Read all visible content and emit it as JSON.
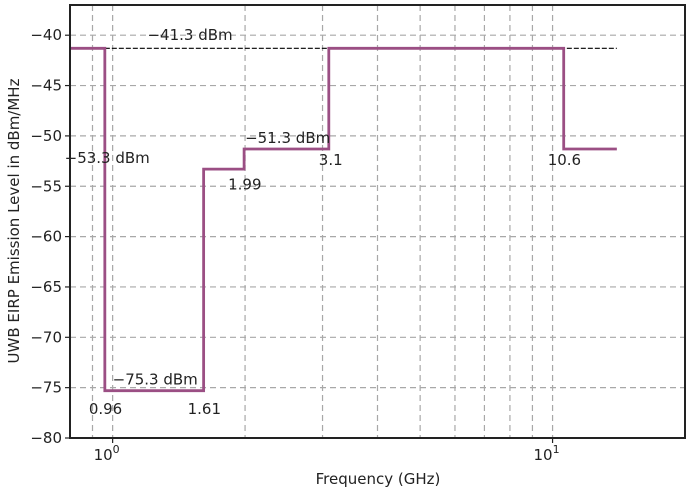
{
  "chart_data": {
    "type": "line",
    "xscale": "log",
    "xlabel": "Frequency (GHz)",
    "ylabel": "UWB EIRP Emission Level in dBm/MHz",
    "xlim": [
      0.8,
      20
    ],
    "ylim": [
      -80,
      -37
    ],
    "grid": true,
    "x_ticks": [
      {
        "value": 1,
        "base": "10",
        "exp": "0"
      },
      {
        "value": 10,
        "base": "10",
        "exp": "1"
      }
    ],
    "y_ticks": [
      -40,
      -45,
      -50,
      -55,
      -60,
      -65,
      -70,
      -75,
      -80
    ],
    "y_tick_labels": [
      "−40",
      "−45",
      "−50",
      "−55",
      "−60",
      "−65",
      "−70",
      "−75",
      "−80"
    ],
    "series": [
      {
        "color": "#9b4f84",
        "step_x": [
          0.8,
          0.96,
          0.96,
          1.61,
          1.61,
          1.99,
          1.99,
          3.1,
          3.1,
          10.6,
          10.6,
          14
        ],
        "step_y": [
          -41.3,
          -41.3,
          -75.3,
          -75.3,
          -53.3,
          -53.3,
          -51.3,
          -51.3,
          -41.3,
          -41.3,
          -51.3,
          -51.3
        ]
      }
    ],
    "reference_line": {
      "y": -41.3,
      "x_range": [
        0.96,
        14
      ],
      "color": "#000000"
    },
    "annotations": [
      {
        "text": "−41.3 dBm",
        "x": 1.2,
        "y": -40.5
      },
      {
        "text": "−53.3 dBm",
        "x": 1.0,
        "y": -52.7
      },
      {
        "text": "−51.3 dBm",
        "x": 2.0,
        "y": -50.7
      },
      {
        "text": "−75.3 dBm",
        "x": 1.0,
        "y": -74.7
      },
      {
        "text": "1.99",
        "x": 1.99,
        "y": -55.3
      },
      {
        "text": "3.1",
        "x": 3.1,
        "y": -52.9
      },
      {
        "text": "10.6",
        "x": 10.6,
        "y": -52.9
      },
      {
        "text": "0.96",
        "x": 0.96,
        "y": -77.6
      },
      {
        "text": "1.61",
        "x": 1.61,
        "y": -77.6
      }
    ]
  }
}
